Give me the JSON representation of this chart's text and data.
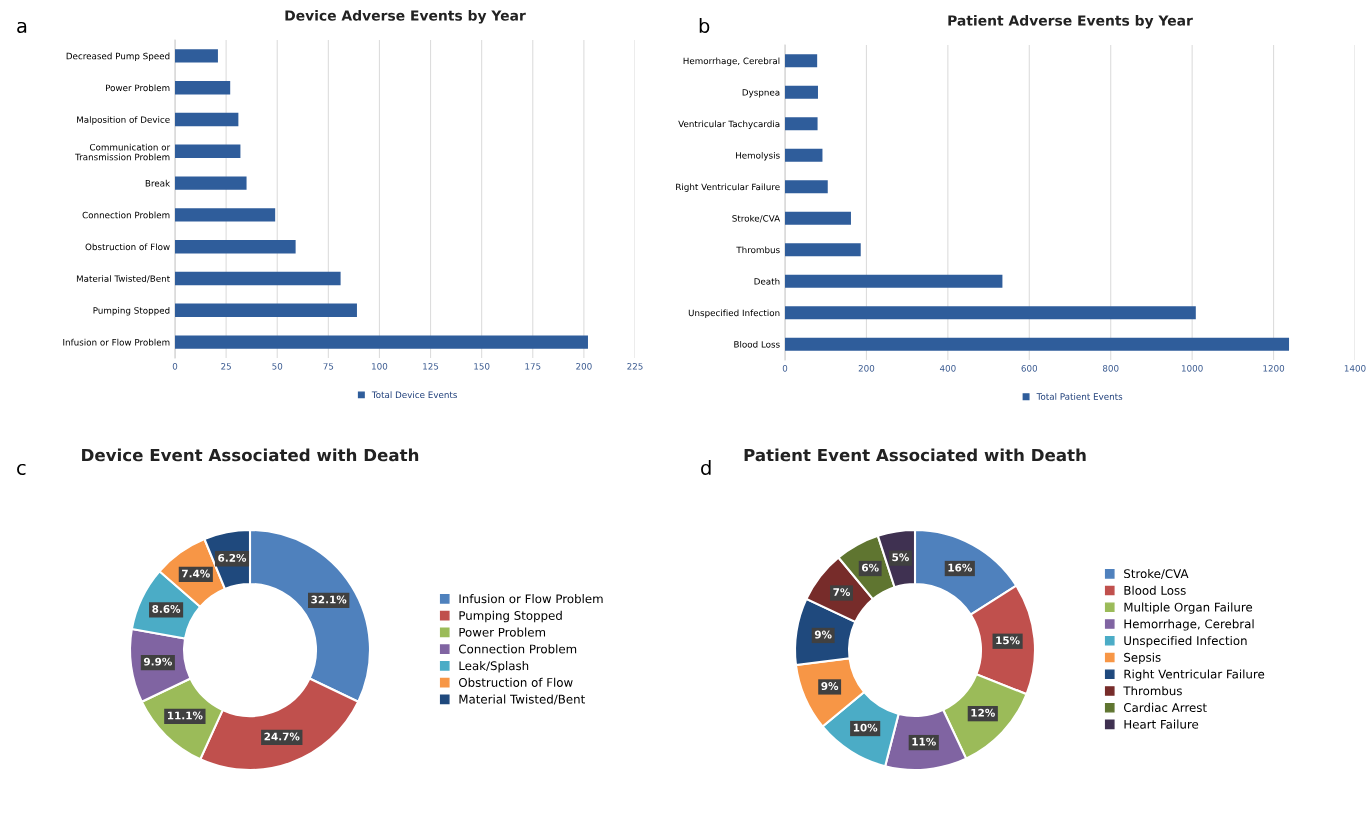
{
  "chart_data": [
    {
      "type": "bar",
      "orientation": "horizontal",
      "title": "Device Adverse Events by Year",
      "annotations": [
        "a"
      ],
      "categories": [
        "Decreased Pump Speed",
        "Power Problem",
        "Malposition of Device",
        "Communication or Transmission Problem",
        "Break",
        "Connection Problem",
        "Obstruction of Flow",
        "Material Twisted/Bent",
        "Pumping Stopped",
        "Infusion or Flow Problem"
      ],
      "series": [
        {
          "name": "Total Device Events",
          "color": "#2f5d9b",
          "values": [
            21,
            27,
            31,
            32,
            35,
            49,
            59,
            81,
            89,
            202
          ]
        }
      ],
      "xlim": [
        0,
        225
      ],
      "xticks": [
        0,
        25,
        50,
        75,
        100,
        125,
        150,
        175,
        200,
        225
      ],
      "grid": "x",
      "legend": "bottom"
    },
    {
      "type": "bar",
      "orientation": "horizontal",
      "title": "Patient Adverse Events by Year",
      "annotations": [
        "b"
      ],
      "categories": [
        "Hemorrhage, Cerebral",
        "Dyspnea",
        "Ventricular Tachycardia",
        "Hemolysis",
        "Right Ventricular Failure",
        "Stroke/CVA",
        "Thrombus",
        "Death",
        "Unspecified Infection",
        "Blood Loss"
      ],
      "series": [
        {
          "name": "Total Patient Events",
          "color": "#2f5d9b",
          "values": [
            79,
            81,
            80,
            92,
            105,
            162,
            186,
            534,
            1009,
            1238
          ]
        }
      ],
      "xlim": [
        0,
        1400
      ],
      "xticks": [
        0,
        200,
        400,
        600,
        800,
        1000,
        1200,
        1400
      ],
      "grid": "x",
      "legend": "bottom"
    },
    {
      "type": "donut",
      "title": "Device Event Associated with Death",
      "annotations": [
        "c"
      ],
      "categories": [
        "Infusion or Flow Problem",
        "Pumping Stopped",
        "Power Problem",
        "Connection Problem",
        "Leak/Splash",
        "Obstruction of Flow",
        "Material Twisted/Bent"
      ],
      "values": [
        32.1,
        24.7,
        11.1,
        9.9,
        8.6,
        7.4,
        6.2
      ],
      "value_labels": [
        "32.1%",
        "24.7%",
        "11.1%",
        "9.9%",
        "8.6%",
        "7.4%",
        "6.2%"
      ],
      "colors": [
        "#4f81bd",
        "#c0504d",
        "#9bbb59",
        "#8064a2",
        "#4bacc6",
        "#f79646",
        "#1f497d"
      ],
      "legend": "right"
    },
    {
      "type": "donut",
      "title": "Patient Event Associated with Death",
      "annotations": [
        "d"
      ],
      "categories": [
        "Stroke/CVA",
        "Blood Loss",
        "Multiple Organ Failure",
        "Hemorrhage, Cerebral",
        "Unspecified Infection",
        "Sepsis",
        "Right Ventricular Failure",
        "Thrombus",
        "Cardiac Arrest",
        "Heart Failure"
      ],
      "values": [
        16,
        15,
        12,
        11,
        10,
        9,
        9,
        7,
        6,
        5
      ],
      "value_labels": [
        "16%",
        "15%",
        "12%",
        "11%",
        "10%",
        "9%",
        "9%",
        "7%",
        "6%",
        "5%"
      ],
      "colors": [
        "#4f81bd",
        "#c0504d",
        "#9bbb59",
        "#8064a2",
        "#4bacc6",
        "#f79646",
        "#1f497d",
        "#772c2a",
        "#5f7530",
        "#3f3151"
      ],
      "legend": "right"
    }
  ]
}
